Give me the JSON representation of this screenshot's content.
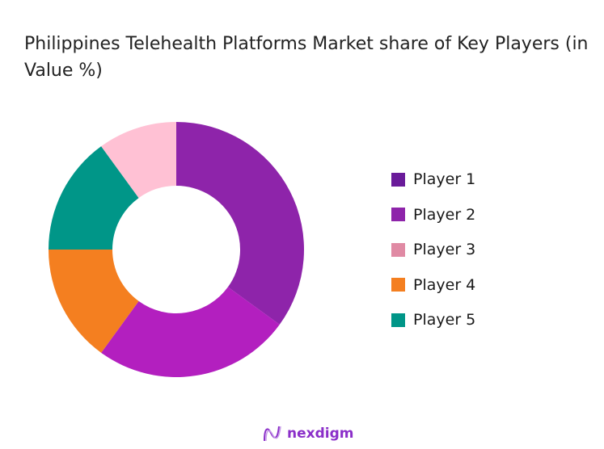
{
  "chart_data": {
    "type": "pie",
    "variant": "donut",
    "title": "Philippines Telehealth Platforms Market share of Key Players (in Value %)",
    "categories": [
      "Player 1",
      "Player 2",
      "Player 3",
      "Player 4",
      "Player 5"
    ],
    "values": [
      35,
      25,
      10,
      15,
      15
    ],
    "slice_order_clockwise_from_top": [
      "Player 1",
      "Player 2",
      "Player 4",
      "Player 5",
      "Player 3"
    ],
    "slice_colors": {
      "Player 1": "#8e24aa",
      "Player 2": "#b31fbf",
      "Player 3": "#ffc1d4",
      "Player 4": "#f47f20",
      "Player 5": "#009688"
    },
    "legend_colors": [
      "#6a1b9a",
      "#8e24aa",
      "#e08aa4",
      "#f47f20",
      "#009688"
    ],
    "legend_position": "right",
    "unit": "%"
  },
  "logo": {
    "text": "nexdigm",
    "color": "#8b2fc9"
  }
}
